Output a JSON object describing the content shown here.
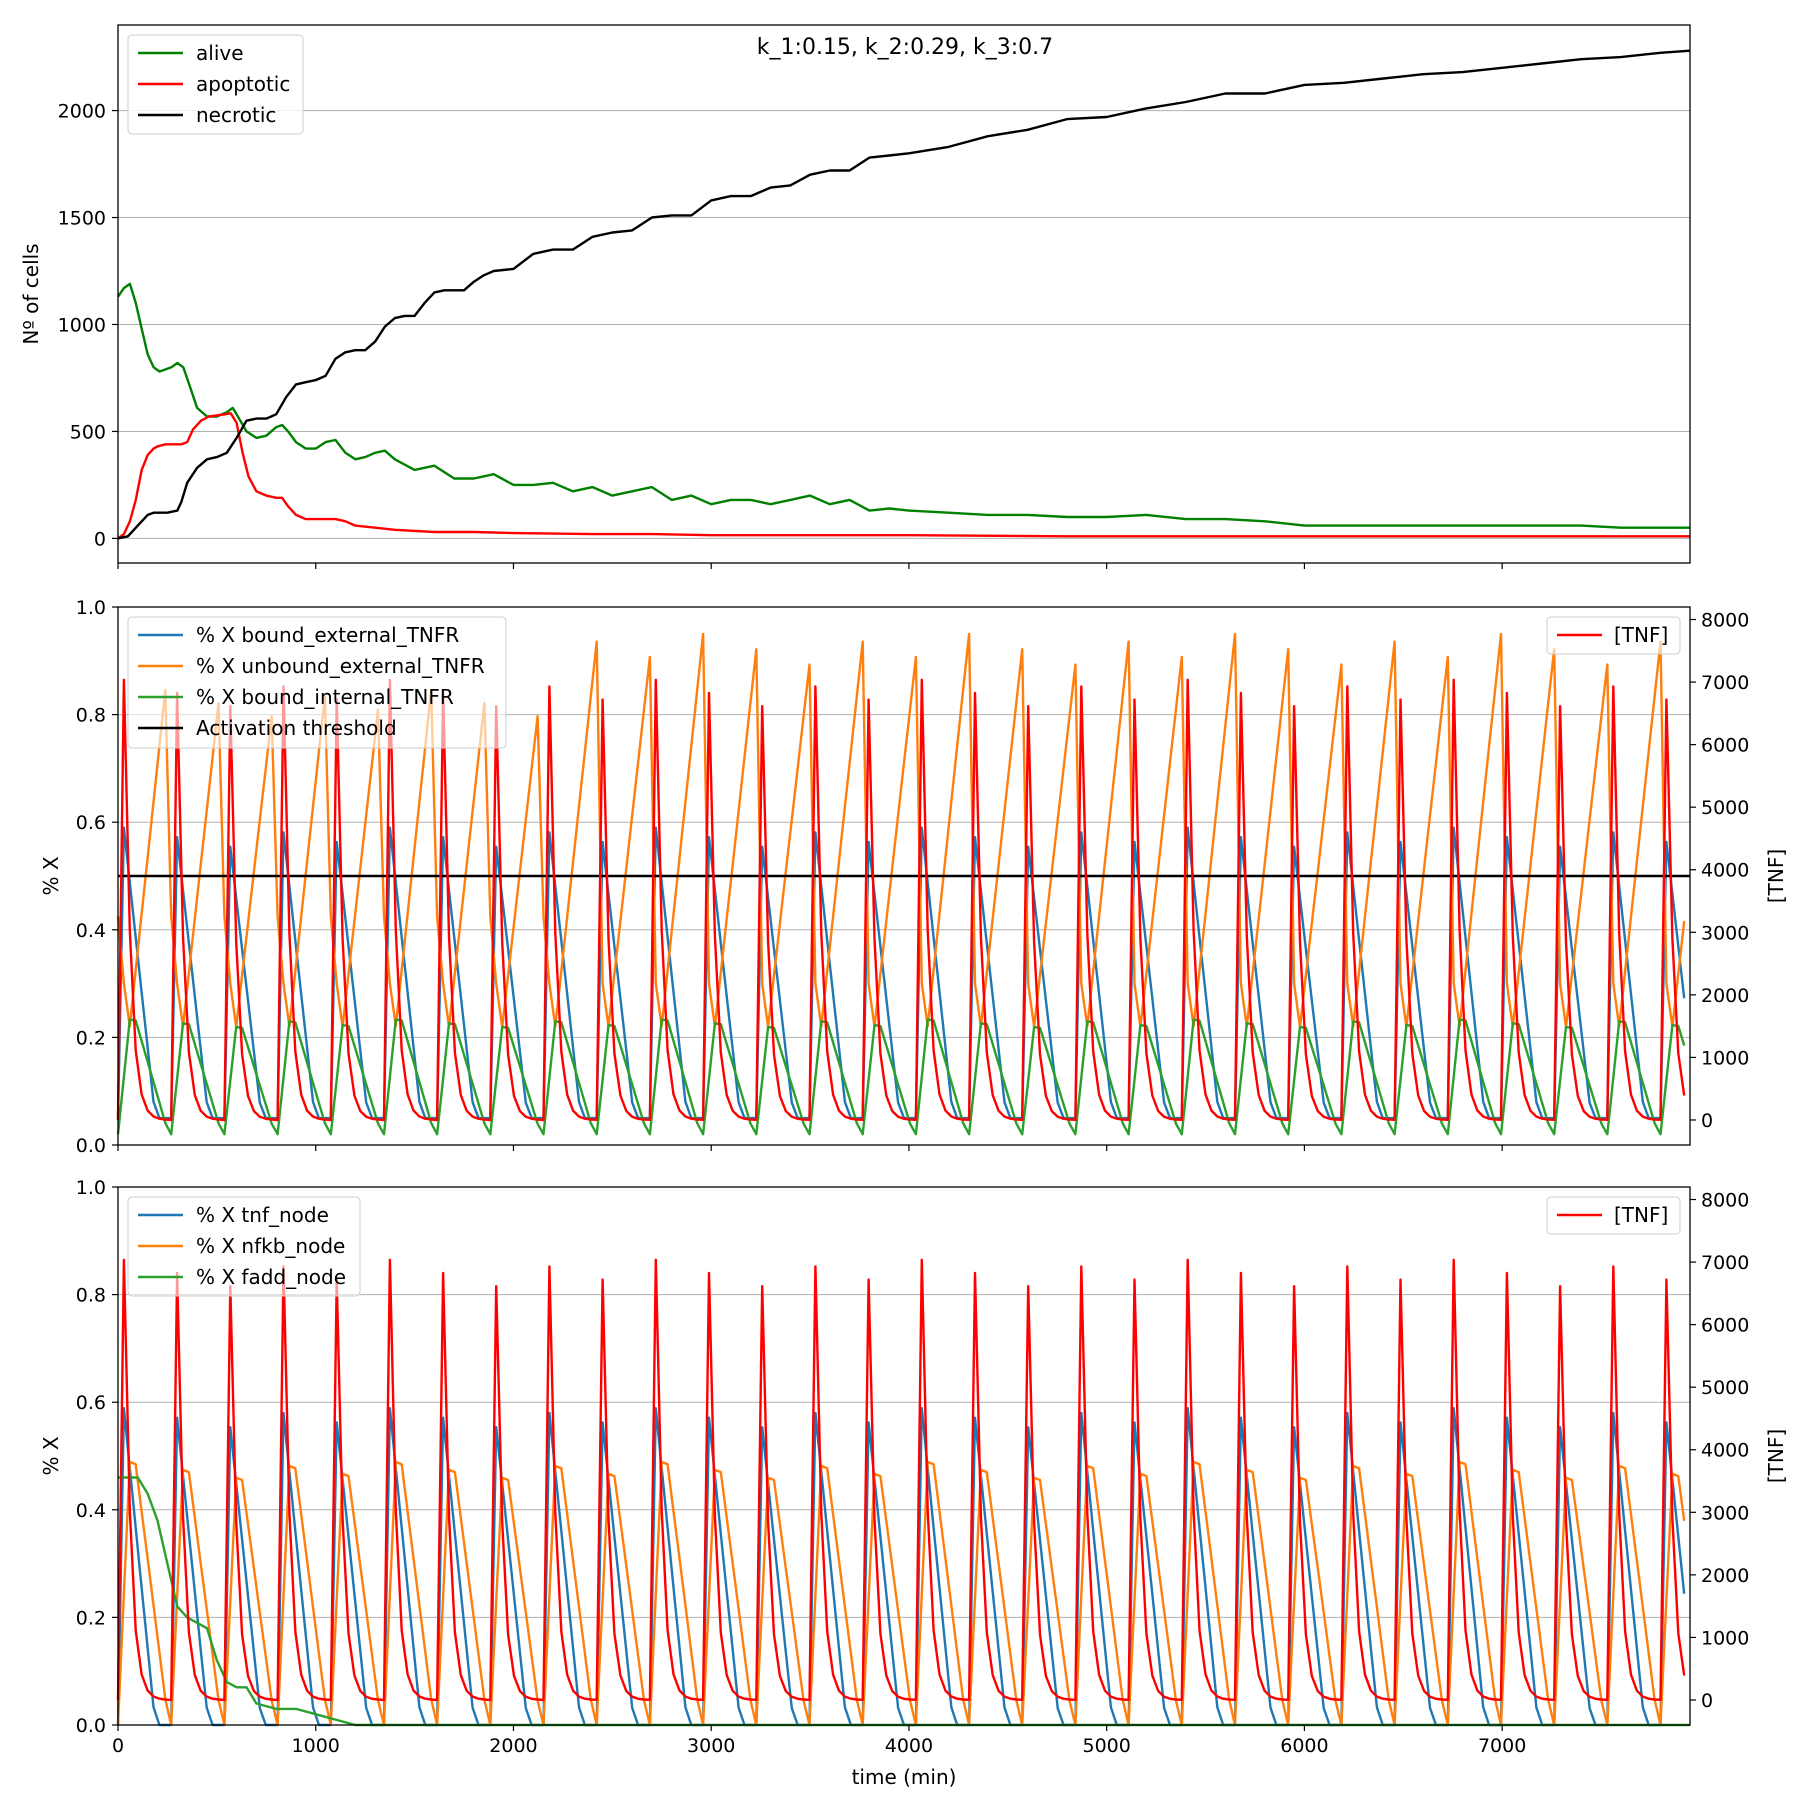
{
  "chart_data": [
    {
      "type": "line",
      "title": "k_1:0.15, k_2:0.29, k_3:0.7",
      "xlabel": "",
      "ylabel": "Nº of cells",
      "xlim": [
        0,
        7950
      ],
      "ylim": [
        -115,
        2400
      ],
      "yticks": [
        "0",
        "500",
        "1000",
        "1500",
        "2000"
      ],
      "grid": "y",
      "legend_position": "top-left",
      "series": [
        {
          "name": "alive",
          "color": "#008000",
          "x": [
            0,
            30,
            60,
            90,
            120,
            150,
            180,
            210,
            240,
            270,
            300,
            330,
            360,
            400,
            450,
            500,
            550,
            580,
            600,
            650,
            700,
            750,
            800,
            830,
            860,
            900,
            950,
            1000,
            1050,
            1100,
            1150,
            1200,
            1250,
            1300,
            1350,
            1400,
            1500,
            1600,
            1700,
            1800,
            1900,
            2000,
            2100,
            2200,
            2300,
            2400,
            2500,
            2600,
            2700,
            2800,
            2900,
            3000,
            3100,
            3200,
            3300,
            3400,
            3500,
            3600,
            3700,
            3800,
            3900,
            4000,
            4200,
            4400,
            4600,
            4800,
            5000,
            5200,
            5400,
            5600,
            5800,
            6000,
            6200,
            6400,
            6600,
            6800,
            7000,
            7200,
            7400,
            7600,
            7800,
            7950
          ],
          "y": [
            1130,
            1170,
            1190,
            1100,
            980,
            860,
            800,
            780,
            790,
            800,
            820,
            800,
            720,
            610,
            570,
            570,
            590,
            610,
            580,
            500,
            470,
            480,
            520,
            530,
            500,
            450,
            420,
            420,
            450,
            460,
            400,
            370,
            380,
            400,
            410,
            370,
            320,
            340,
            280,
            280,
            300,
            250,
            250,
            260,
            220,
            240,
            200,
            220,
            240,
            180,
            200,
            160,
            180,
            180,
            160,
            180,
            200,
            160,
            180,
            130,
            140,
            130,
            120,
            110,
            110,
            100,
            100,
            110,
            90,
            90,
            80,
            60,
            60,
            60,
            60,
            60,
            60,
            60,
            60,
            50,
            50,
            50
          ]
        },
        {
          "name": "apoptotic",
          "color": "#ff0000",
          "x": [
            0,
            30,
            60,
            90,
            120,
            150,
            180,
            200,
            240,
            280,
            320,
            350,
            380,
            420,
            460,
            500,
            540,
            570,
            600,
            630,
            660,
            700,
            750,
            800,
            830,
            860,
            900,
            950,
            1000,
            1100,
            1150,
            1200,
            1300,
            1400,
            1600,
            1800,
            2000,
            2400,
            2700,
            3000,
            3400,
            4000,
            4800,
            5400,
            6000,
            7000,
            7950
          ],
          "y": [
            0,
            20,
            80,
            180,
            320,
            390,
            420,
            430,
            440,
            440,
            440,
            450,
            510,
            550,
            570,
            575,
            580,
            585,
            540,
            400,
            290,
            220,
            200,
            190,
            190,
            150,
            110,
            90,
            90,
            90,
            80,
            60,
            50,
            40,
            30,
            30,
            25,
            20,
            20,
            15,
            15,
            15,
            10,
            10,
            10,
            10,
            10
          ]
        },
        {
          "name": "necrotic",
          "color": "#000000",
          "x": [
            0,
            50,
            100,
            150,
            180,
            200,
            250,
            300,
            320,
            350,
            400,
            450,
            500,
            550,
            600,
            650,
            700,
            750,
            800,
            850,
            900,
            950,
            1000,
            1050,
            1100,
            1150,
            1200,
            1250,
            1300,
            1350,
            1400,
            1450,
            1500,
            1550,
            1600,
            1650,
            1700,
            1750,
            1800,
            1850,
            1900,
            2000,
            2100,
            2200,
            2300,
            2400,
            2500,
            2600,
            2700,
            2800,
            2900,
            3000,
            3100,
            3200,
            3300,
            3400,
            3500,
            3600,
            3700,
            3800,
            3900,
            4000,
            4200,
            4400,
            4600,
            4800,
            5000,
            5200,
            5400,
            5600,
            5800,
            6000,
            6200,
            6400,
            6600,
            6800,
            7000,
            7200,
            7400,
            7600,
            7800,
            7950
          ],
          "y": [
            0,
            10,
            60,
            110,
            120,
            120,
            120,
            130,
            170,
            260,
            330,
            370,
            380,
            400,
            470,
            550,
            560,
            560,
            580,
            660,
            720,
            730,
            740,
            760,
            840,
            870,
            880,
            880,
            920,
            990,
            1030,
            1040,
            1040,
            1100,
            1150,
            1160,
            1160,
            1160,
            1200,
            1230,
            1250,
            1260,
            1330,
            1350,
            1350,
            1410,
            1430,
            1440,
            1500,
            1510,
            1510,
            1580,
            1600,
            1600,
            1640,
            1650,
            1700,
            1720,
            1720,
            1780,
            1790,
            1800,
            1830,
            1880,
            1910,
            1960,
            1970,
            2010,
            2040,
            2080,
            2080,
            2120,
            2130,
            2150,
            2170,
            2180,
            2200,
            2220,
            2240,
            2250,
            2270,
            2280
          ]
        }
      ]
    },
    {
      "type": "line",
      "title": "",
      "xlabel": "",
      "ylabel": "% X",
      "y2label": "[TNF]",
      "xlim": [
        0,
        7950
      ],
      "ylim": [
        0,
        1
      ],
      "y2lim": [
        -400,
        8200
      ],
      "yticks": [
        "0.0",
        "0.2",
        "0.4",
        "0.6",
        "0.8",
        "1.0"
      ],
      "y2ticks": [
        "0",
        "1000",
        "2000",
        "3000",
        "4000",
        "5000",
        "6000",
        "7000",
        "8000"
      ],
      "grid": "y",
      "legend_position": "top-left",
      "legend2_position": "top-right",
      "period_min": 269,
      "oscillation_cycles": 30,
      "series": [
        {
          "name": "% X bound_external_TNFR",
          "color": "#1f77b4",
          "peak_max": 0.6,
          "trough_min": 0.05
        },
        {
          "name": "% X unbound_external_TNFR",
          "color": "#ff7f0e",
          "peak_max": 0.95,
          "trough_min": 0.2
        },
        {
          "name": "% X bound_internal_TNFR",
          "color": "#2ca02c",
          "peak_max": 0.26,
          "trough_min": 0.02
        },
        {
          "name": "Activation threshold",
          "color": "#000000",
          "y": [
            0.5,
            0.5
          ],
          "x": [
            0,
            7950
          ]
        }
      ],
      "series_right": [
        {
          "name": "[TNF]",
          "color": "#ff0000",
          "peak_max": 7600,
          "trough_min": 0
        }
      ]
    },
    {
      "type": "line",
      "title": "",
      "xlabel": "time (min)",
      "ylabel": "% X",
      "y2label": "[TNF]",
      "xlim": [
        0,
        7950
      ],
      "ylim": [
        0,
        1
      ],
      "y2lim": [
        -400,
        8200
      ],
      "xticks": [
        "0",
        "1000",
        "2000",
        "3000",
        "4000",
        "5000",
        "6000",
        "7000"
      ],
      "yticks": [
        "0.0",
        "0.2",
        "0.4",
        "0.6",
        "0.8",
        "1.0"
      ],
      "y2ticks": [
        "0",
        "1000",
        "2000",
        "3000",
        "4000",
        "5000",
        "6000",
        "7000",
        "8000"
      ],
      "grid": "y",
      "legend_position": "top-left",
      "legend2_position": "top-right",
      "period_min": 269,
      "oscillation_cycles": 30,
      "series": [
        {
          "name": "% X tnf_node",
          "color": "#1f77b4",
          "peak_max": 0.6,
          "trough_min": 0
        },
        {
          "name": "% X nfkb_node",
          "color": "#ff7f0e",
          "peak_max": 0.55,
          "trough_min": 0
        },
        {
          "name": "% X fadd_node",
          "color": "#2ca02c",
          "x": [
            0,
            100,
            150,
            200,
            250,
            300,
            350,
            400,
            450,
            500,
            550,
            600,
            650,
            700,
            800,
            900,
            1000,
            1100,
            1200,
            7950
          ],
          "y": [
            0.46,
            0.46,
            0.43,
            0.38,
            0.3,
            0.22,
            0.2,
            0.19,
            0.18,
            0.12,
            0.08,
            0.07,
            0.07,
            0.04,
            0.03,
            0.03,
            0.02,
            0.01,
            0.0,
            0.0
          ]
        }
      ],
      "series_right": [
        {
          "name": "[TNF]",
          "color": "#ff0000",
          "peak_max": 7600,
          "trough_min": 0
        }
      ]
    }
  ]
}
